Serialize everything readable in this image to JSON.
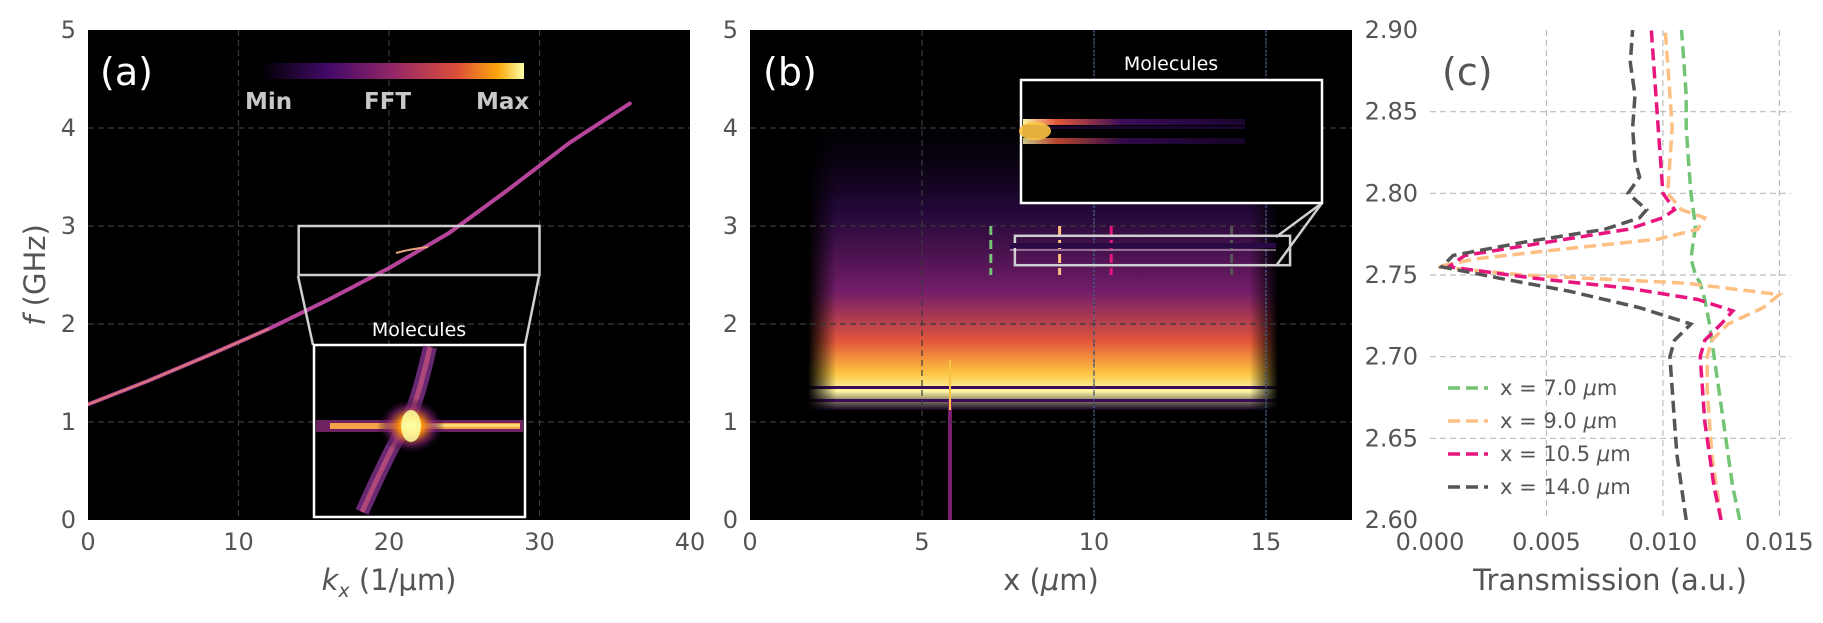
{
  "colors": {
    "background": "#000000",
    "plasma_line": "#b5449a",
    "grid_dark": "#3a3a3a",
    "grid_light": "#bdbdbd",
    "inset_frame": "#cfcfcf"
  },
  "chart_data": [
    {
      "type": "heatmap",
      "panel_label": "(a)",
      "xlabel_base": "k",
      "xlabel_sub": "x",
      "xlabel_unit": " (1/μm)",
      "ylabel_italic": "f",
      "ylabel_unit": " (GHz)",
      "xlim": [
        0,
        40
      ],
      "ylim": [
        0,
        5
      ],
      "xticks": [
        "0",
        "10",
        "20",
        "30",
        "40"
      ],
      "yticks": [
        "0",
        "1",
        "2",
        "3",
        "4",
        "5"
      ],
      "dispersion_curve": {
        "x": [
          0,
          4,
          8,
          12,
          16,
          20,
          24,
          28,
          32,
          36
        ],
        "y": [
          1.18,
          1.42,
          1.68,
          1.95,
          2.25,
          2.57,
          2.93,
          3.38,
          3.85,
          4.25
        ]
      },
      "colorbar": {
        "min_label": "Min",
        "mid_label": "FFT",
        "max_label": "Max"
      },
      "zoom_box": {
        "x": [
          14,
          30
        ],
        "y": [
          2.5,
          3.0
        ]
      },
      "inset_title": "Molecules"
    },
    {
      "type": "heatmap",
      "panel_label": "(b)",
      "xlabel_base": "x (",
      "xlabel_mu": "μ",
      "xlabel_tail": "m)",
      "xlim": [
        0,
        17.5
      ],
      "ylim": [
        0,
        5
      ],
      "xticks": [
        "0",
        "5",
        "10",
        "15"
      ],
      "yticks": [
        "0",
        "1",
        "2",
        "3",
        "4",
        "5"
      ],
      "probe_positions": [
        7.0,
        9.0,
        10.5,
        14.0
      ],
      "source_x": 6.0,
      "zoom_box": {
        "x": [
          7.7,
          15.7
        ],
        "y": [
          2.6,
          2.9
        ]
      },
      "inset_title": "Molecules"
    },
    {
      "type": "line",
      "panel_label": "(c)",
      "xlabel": "Transmission (a.u.)",
      "xlim": [
        0,
        0.0155
      ],
      "ylim": [
        2.6,
        2.9
      ],
      "xticks": [
        "0.000",
        "0.005",
        "0.010",
        "0.015"
      ],
      "xtick_values": [
        0,
        0.005,
        0.01,
        0.015
      ],
      "yticks": [
        "2.60",
        "2.65",
        "2.70",
        "2.75",
        "2.80",
        "2.85",
        "2.90"
      ],
      "ytick_values": [
        2.6,
        2.65,
        2.7,
        2.75,
        2.8,
        2.85,
        2.9
      ],
      "legend_prefix": "x = ",
      "legend_unit_mu": "μ",
      "legend_unit_tail": "m",
      "series": [
        {
          "name": "7.0",
          "color": "#74c476",
          "f": [
            2.6,
            2.62,
            2.64,
            2.66,
            2.68,
            2.7,
            2.72,
            2.735,
            2.745,
            2.75,
            2.755,
            2.76,
            2.77,
            2.78,
            2.79,
            2.8,
            2.82,
            2.84,
            2.86,
            2.88,
            2.9
          ],
          "t": [
            0.0133,
            0.013,
            0.0128,
            0.0126,
            0.0124,
            0.0122,
            0.012,
            0.0118,
            0.0116,
            0.0114,
            0.0113,
            0.0112,
            0.0113,
            0.0114,
            0.0113,
            0.0112,
            0.0111,
            0.011,
            0.011,
            0.0109,
            0.0108
          ]
        },
        {
          "name": "9.0",
          "color": "#fdbf82",
          "f": [
            2.6,
            2.62,
            2.64,
            2.66,
            2.68,
            2.7,
            2.71,
            2.72,
            2.73,
            2.738,
            2.745,
            2.75,
            2.755,
            2.76,
            2.766,
            2.772,
            2.778,
            2.785,
            2.79,
            2.8,
            2.82,
            2.84,
            2.86,
            2.88,
            2.9
          ],
          "t": [
            0.0125,
            0.0123,
            0.0121,
            0.012,
            0.0119,
            0.0119,
            0.0121,
            0.0128,
            0.0143,
            0.015,
            0.011,
            0.004,
            0.0003,
            0.002,
            0.0058,
            0.0098,
            0.0115,
            0.0118,
            0.0108,
            0.0102,
            0.0103,
            0.0104,
            0.0103,
            0.0102,
            0.0101
          ]
        },
        {
          "name": "10.5",
          "color": "#e8157e",
          "f": [
            2.6,
            2.62,
            2.64,
            2.66,
            2.68,
            2.7,
            2.71,
            2.72,
            2.728,
            2.735,
            2.742,
            2.748,
            2.755,
            2.762,
            2.77,
            2.778,
            2.785,
            2.79,
            2.8,
            2.82,
            2.84,
            2.86,
            2.88,
            2.9
          ],
          "t": [
            0.0125,
            0.0122,
            0.012,
            0.0118,
            0.0117,
            0.0116,
            0.0118,
            0.0125,
            0.013,
            0.0115,
            0.0085,
            0.0045,
            0.0008,
            0.0015,
            0.005,
            0.0085,
            0.01,
            0.0105,
            0.01,
            0.0099,
            0.0098,
            0.0097,
            0.0096,
            0.0095
          ]
        },
        {
          "name": "14.0",
          "color": "#555555",
          "f": [
            2.6,
            2.62,
            2.64,
            2.66,
            2.68,
            2.7,
            2.71,
            2.72,
            2.73,
            2.74,
            2.748,
            2.755,
            2.762,
            2.77,
            2.778,
            2.785,
            2.79,
            2.8,
            2.81,
            2.82,
            2.84,
            2.86,
            2.88,
            2.9
          ],
          "t": [
            0.011,
            0.0108,
            0.0106,
            0.0105,
            0.0104,
            0.0103,
            0.0105,
            0.0112,
            0.009,
            0.006,
            0.003,
            0.0005,
            0.001,
            0.004,
            0.0075,
            0.009,
            0.0093,
            0.0085,
            0.009,
            0.0088,
            0.0087,
            0.0088,
            0.0086,
            0.0087
          ]
        }
      ]
    }
  ]
}
